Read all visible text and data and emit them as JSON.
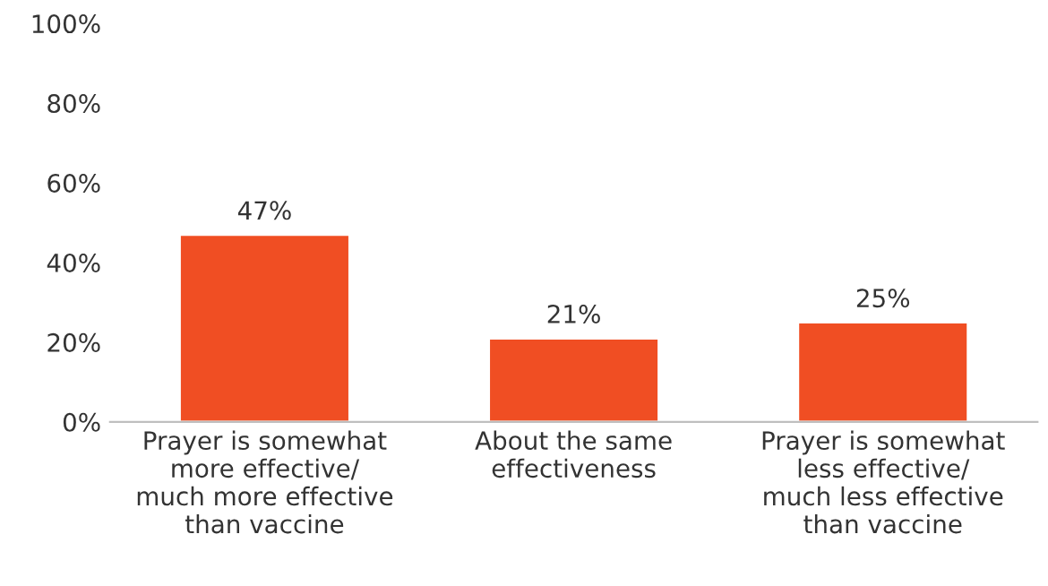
{
  "chart_data": {
    "type": "bar",
    "categories": [
      "Prayer is somewhat\nmore effective/\nmuch more effective\nthan vaccine",
      "About the same\neffectiveness",
      "Prayer is somewhat\nless effective/\nmuch less effective\nthan vaccine"
    ],
    "values": [
      47,
      21,
      25
    ],
    "color": "#f04e23",
    "value_labels": [
      "47%",
      "21%",
      "25%"
    ],
    "ylim": [
      0,
      100
    ],
    "yticks": [
      {
        "value": 0,
        "label": "0%"
      },
      {
        "value": 20,
        "label": "20%"
      },
      {
        "value": 40,
        "label": "40%"
      },
      {
        "value": 60,
        "label": "60%"
      },
      {
        "value": 80,
        "label": "80%"
      },
      {
        "value": 100,
        "label": "100%"
      }
    ],
    "grid": false
  }
}
